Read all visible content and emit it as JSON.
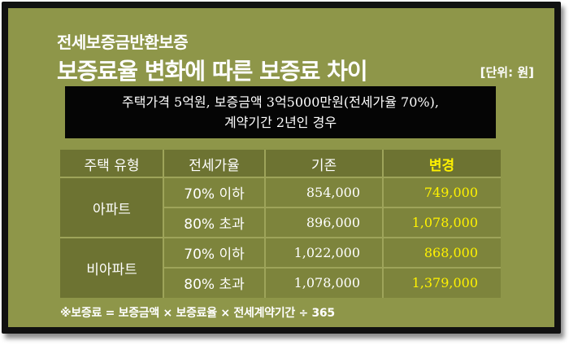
{
  "header": {
    "subtitle": "전세보증금반환보증",
    "title": "보증료율 변화에 따른 보증료 차이",
    "unit": "[단위: 원]"
  },
  "banner": {
    "line1": "주택가격 5억원, 보증금액 3억5000만원(전세가율 70%),",
    "line2": "계약기간 2년인 경우"
  },
  "table": {
    "headers": [
      "주택 유형",
      "전세가율",
      "기존",
      "변경"
    ],
    "groups": [
      {
        "type": "아파트",
        "rows": [
          {
            "ratio": "70% 이하",
            "before": "854,000",
            "after": "749,000"
          },
          {
            "ratio": "80% 초과",
            "before": "896,000",
            "after": "1,078,000"
          }
        ]
      },
      {
        "type": "비아파트",
        "rows": [
          {
            "ratio": "70% 이하",
            "before": "1,022,000",
            "after": "868,000"
          },
          {
            "ratio": "80% 초과",
            "before": "1,078,000",
            "after": "1,379,000"
          }
        ]
      }
    ]
  },
  "footnote": "※보증료 = 보증금액 × 보증료율 × 전세계약기간 ÷ 365",
  "colors": {
    "background": "#8e9649",
    "header_cell": "#6d7332",
    "data_cell": "#7d843c",
    "highlight": "#fff200",
    "banner": "#050505"
  }
}
